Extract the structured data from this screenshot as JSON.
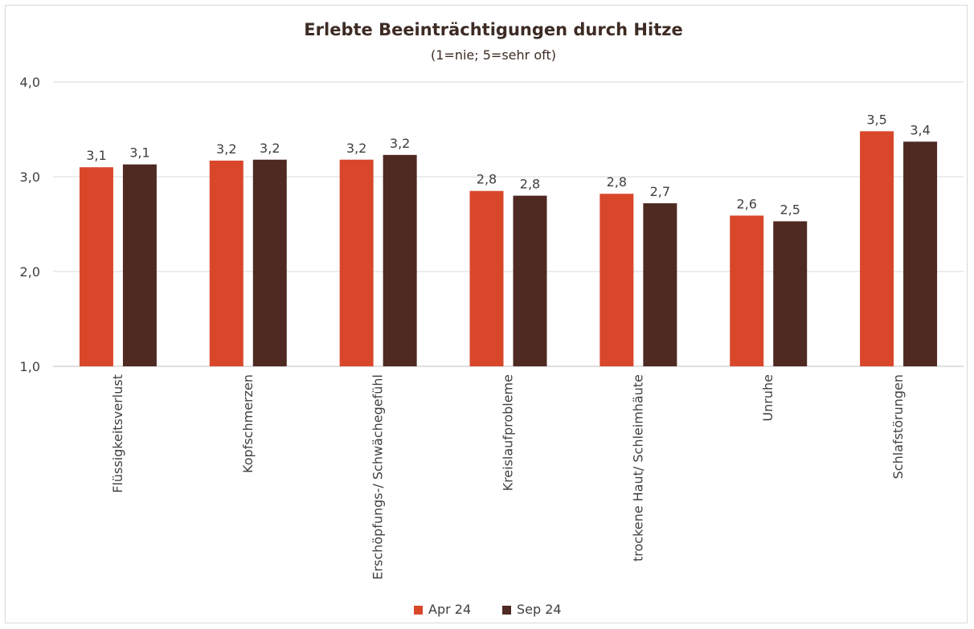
{
  "chart_data": {
    "type": "bar",
    "title": "Erlebte Beeinträchtigungen durch Hitze",
    "subtitle": "(1=nie; 5=sehr oft)",
    "xlabel": "",
    "ylabel": "",
    "ylim": [
      1.0,
      4.0
    ],
    "yticks": [
      1.0,
      2.0,
      3.0,
      4.0
    ],
    "ytick_labels": [
      "1,0",
      "2,0",
      "3,0",
      "4,0"
    ],
    "grid": true,
    "legend_position": "bottom",
    "categories": [
      "Flüssigkeitsverlust",
      "Kopfschmerzen",
      "Erschöpfungs-/ Schwächegefühl",
      "Kreislaufprobleme",
      "trockene Haut/ Schleimhäute",
      "Unruhe",
      "Schlafstörungen"
    ],
    "series": [
      {
        "name": "Apr 24",
        "color": "#d9472b",
        "values": [
          3.1,
          3.17,
          3.18,
          2.85,
          2.82,
          2.59,
          3.48
        ],
        "labels": [
          "3,1",
          "3,2",
          "3,2",
          "2,8",
          "2,8",
          "2,6",
          "3,5"
        ]
      },
      {
        "name": "Sep 24",
        "color": "#4e2a23",
        "values": [
          3.13,
          3.18,
          3.23,
          2.8,
          2.72,
          2.53,
          3.37
        ],
        "labels": [
          "3,1",
          "3,2",
          "3,2",
          "2,8",
          "2,7",
          "2,5",
          "3,4"
        ]
      }
    ]
  }
}
